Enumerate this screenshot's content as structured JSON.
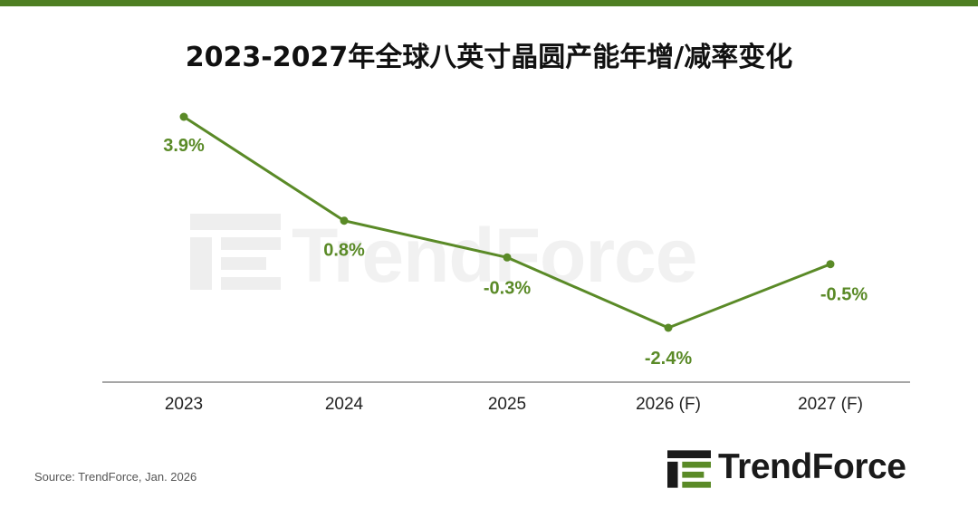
{
  "colors": {
    "accent": "#5a8a27",
    "top_bar": "#4e7f22",
    "axis": "#888888"
  },
  "chart_data": {
    "type": "line",
    "title": "2023-2027年全球八英寸晶圆产能年增/减率变化",
    "categories": [
      "2023",
      "2024",
      "2025",
      "2026 (F)",
      "2027 (F)"
    ],
    "series": [
      {
        "values": [
          3.9,
          0.8,
          -0.3,
          -2.4,
          -0.5
        ],
        "labels": [
          "3.9%",
          "0.8%",
          "-0.3%",
          "-2.4%",
          "-0.5%"
        ]
      }
    ],
    "xlabel": "",
    "ylabel": "",
    "y_unit": "%",
    "ylim": [
      -3.5,
      5
    ],
    "grid": false,
    "legend": "none"
  },
  "footer": {
    "source": "Source: TrendForce, Jan. 2026",
    "brand": "TrendForce"
  },
  "watermark": {
    "text": "TrendForce"
  }
}
